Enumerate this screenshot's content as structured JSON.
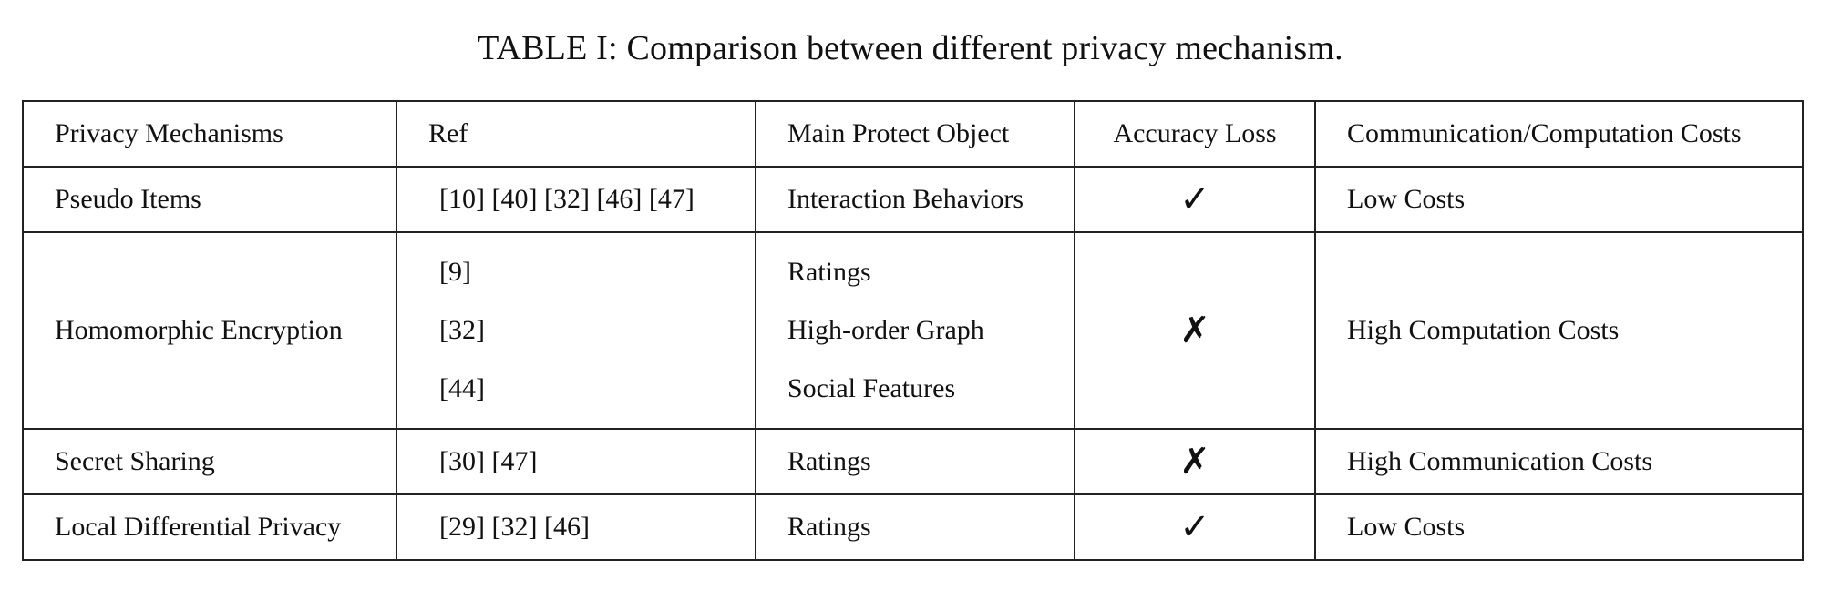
{
  "caption": "TABLE I: Comparison between different privacy mechanism.",
  "headers": [
    "Privacy Mechanisms",
    "Ref",
    "Main Protect Object",
    "Accuracy Loss",
    "Communication/Computation Costs"
  ],
  "rows": [
    {
      "mechanism": "Pseudo Items",
      "refs": [
        "[10] [40] [32] [46] [47]"
      ],
      "objects": [
        "Interaction Behaviors"
      ],
      "accuracy_loss": "✓",
      "costs": "Low Costs"
    },
    {
      "mechanism": "Homomorphic Encryption",
      "refs": [
        "[9]",
        "[32]",
        "[44]"
      ],
      "objects": [
        "Ratings",
        "High-order Graph",
        "Social Features"
      ],
      "accuracy_loss": "✗",
      "costs": "High Computation Costs"
    },
    {
      "mechanism": "Secret Sharing",
      "refs": [
        "[30] [47]"
      ],
      "objects": [
        "Ratings"
      ],
      "accuracy_loss": "✗",
      "costs": "High Communication Costs"
    },
    {
      "mechanism": "Local Differential Privacy",
      "refs": [
        "[29] [32] [46]"
      ],
      "objects": [
        "Ratings"
      ],
      "accuracy_loss": "✓",
      "costs": "Low Costs"
    }
  ]
}
